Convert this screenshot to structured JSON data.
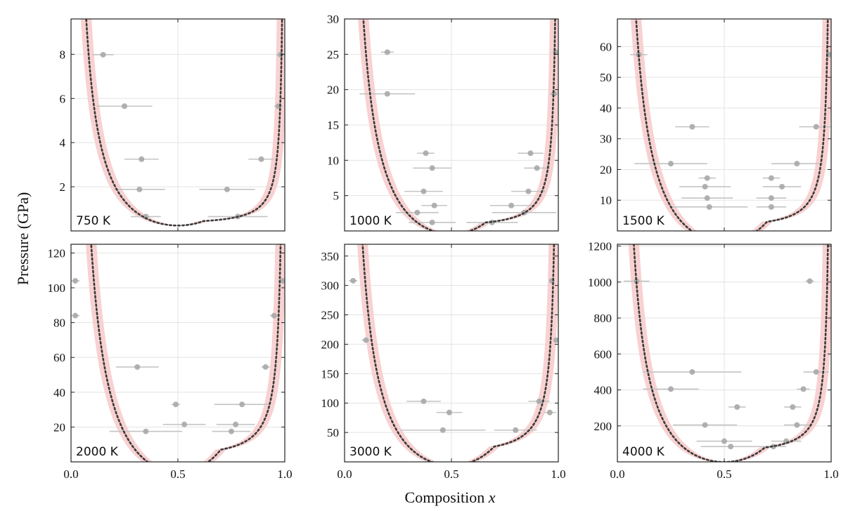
{
  "figure": {
    "ylabel": "Pressure (GPa)",
    "xlabel_text": "Composition ",
    "xlabel_var": "x"
  },
  "colors": {
    "band": "#f7c9c9",
    "curve": "#3a3a3a",
    "point": "#a8a8a8",
    "errorbar": "#c4c4c4",
    "grid": "#e3e3e3",
    "frame": "#222222"
  },
  "chart_data": [
    {
      "type": "scatter",
      "temperature_label": "750 K",
      "xlim": [
        0,
        1
      ],
      "ylim": [
        0,
        9.6
      ],
      "yticks": [
        2,
        4,
        6,
        8
      ],
      "ytick_labels": [
        "2",
        "4",
        "6",
        "8"
      ],
      "xticks": [
        0,
        0.5,
        1
      ],
      "xtick_labels": [],
      "curve": {
        "x_min": 0.62,
        "p_min": 0.45,
        "a_left": 0.84,
        "a_right": 0.12,
        "band_width": 0.05
      },
      "points": [
        {
          "x": 0.15,
          "y": 7.98,
          "xerr": 0.05
        },
        {
          "x": 0.25,
          "y": 5.65,
          "xerr": 0.13
        },
        {
          "x": 0.33,
          "y": 3.25,
          "xerr": 0.08
        },
        {
          "x": 0.32,
          "y": 1.88,
          "xerr": 0.12
        },
        {
          "x": 0.35,
          "y": 0.65,
          "xerr": 0.07
        },
        {
          "x": 0.98,
          "y": 7.98,
          "xerr": 0.02
        },
        {
          "x": 0.97,
          "y": 5.65,
          "xerr": 0.02
        },
        {
          "x": 0.89,
          "y": 3.25,
          "xerr": 0.06
        },
        {
          "x": 0.73,
          "y": 1.88,
          "xerr": 0.13
        },
        {
          "x": 0.78,
          "y": 0.65,
          "xerr": 0.14
        }
      ]
    },
    {
      "type": "scatter",
      "temperature_label": "1000 K",
      "xlim": [
        0,
        1
      ],
      "ylim": [
        0,
        30
      ],
      "yticks": [
        5,
        10,
        15,
        20,
        25,
        30
      ],
      "ytick_labels": [
        "5",
        "10",
        "15",
        "20",
        "25",
        "30"
      ],
      "xticks": [
        0,
        0.5,
        1
      ],
      "xtick_labels": [],
      "curve": {
        "x_min": 0.66,
        "p_min": 1.2,
        "a_left": 3.6,
        "a_right": 0.45,
        "band_width": 0.05
      },
      "points": [
        {
          "x": 0.2,
          "y": 25.3,
          "xerr": 0.03
        },
        {
          "x": 0.2,
          "y": 19.4,
          "xerr": 0.13
        },
        {
          "x": 0.38,
          "y": 11.0,
          "xerr": 0.04
        },
        {
          "x": 0.41,
          "y": 8.9,
          "xerr": 0.09
        },
        {
          "x": 0.37,
          "y": 5.6,
          "xerr": 0.09
        },
        {
          "x": 0.42,
          "y": 3.6,
          "xerr": 0.06
        },
        {
          "x": 0.34,
          "y": 2.6,
          "xerr": 0.1
        },
        {
          "x": 0.41,
          "y": 1.2,
          "xerr": 0.11
        },
        {
          "x": 0.99,
          "y": 25.3,
          "xerr": 0.02
        },
        {
          "x": 0.98,
          "y": 19.4,
          "xerr": 0.02
        },
        {
          "x": 0.87,
          "y": 11.0,
          "xerr": 0.06
        },
        {
          "x": 0.9,
          "y": 8.9,
          "xerr": 0.06
        },
        {
          "x": 0.86,
          "y": 5.6,
          "xerr": 0.08
        },
        {
          "x": 0.78,
          "y": 3.6,
          "xerr": 0.1
        },
        {
          "x": 0.84,
          "y": 2.6,
          "xerr": 0.15
        },
        {
          "x": 0.69,
          "y": 1.2,
          "xerr": 0.12
        }
      ]
    },
    {
      "type": "scatter",
      "temperature_label": "1500 K",
      "xlim": [
        0,
        1
      ],
      "ylim": [
        0,
        69
      ],
      "yticks": [
        10,
        20,
        30,
        40,
        50,
        60
      ],
      "ytick_labels": [
        "10",
        "20",
        "30",
        "40",
        "50",
        "60"
      ],
      "xticks": [
        0,
        0.5,
        1
      ],
      "xtick_labels": [],
      "curve": {
        "x_min": 0.7,
        "p_min": 3.0,
        "a_left": 8.5,
        "a_right": 1.1,
        "band_width": 0.05
      },
      "points": [
        {
          "x": 0.1,
          "y": 57.4,
          "xerr": 0.04
        },
        {
          "x": 0.35,
          "y": 33.9,
          "xerr": 0.08
        },
        {
          "x": 0.25,
          "y": 21.9,
          "xerr": 0.17
        },
        {
          "x": 0.42,
          "y": 17.2,
          "xerr": 0.04
        },
        {
          "x": 0.41,
          "y": 14.4,
          "xerr": 0.12
        },
        {
          "x": 0.42,
          "y": 10.7,
          "xerr": 0.12
        },
        {
          "x": 0.43,
          "y": 7.8,
          "xerr": 0.18
        },
        {
          "x": 0.99,
          "y": 57.4,
          "xerr": 0.01
        },
        {
          "x": 0.93,
          "y": 33.9,
          "xerr": 0.08
        },
        {
          "x": 0.84,
          "y": 21.9,
          "xerr": 0.12
        },
        {
          "x": 0.72,
          "y": 17.2,
          "xerr": 0.04
        },
        {
          "x": 0.77,
          "y": 14.4,
          "xerr": 0.09
        },
        {
          "x": 0.72,
          "y": 10.7,
          "xerr": 0.07
        },
        {
          "x": 0.72,
          "y": 7.8,
          "xerr": 0.07
        }
      ]
    },
    {
      "type": "scatter",
      "temperature_label": "2000 K",
      "xlim": [
        0,
        1
      ],
      "ylim": [
        0,
        125
      ],
      "yticks": [
        20,
        40,
        60,
        80,
        100,
        120
      ],
      "ytick_labels": [
        "20",
        "40",
        "60",
        "80",
        "100",
        "120"
      ],
      "xticks": [
        0,
        0.5,
        1
      ],
      "xtick_labels": [
        "0.0",
        "0.5",
        "1.0"
      ],
      "curve": {
        "x_min": 0.7,
        "p_min": 7.0,
        "a_left": 17,
        "a_right": 2.5,
        "band_width": 0.05
      },
      "points": [
        {
          "x": 0.02,
          "y": 104,
          "xerr": 0.02
        },
        {
          "x": 0.02,
          "y": 84,
          "xerr": 0.02
        },
        {
          "x": 0.31,
          "y": 54.5,
          "xerr": 0.1
        },
        {
          "x": 0.49,
          "y": 33,
          "xerr": 0.02
        },
        {
          "x": 0.53,
          "y": 21.5,
          "xerr": 0.1
        },
        {
          "x": 0.35,
          "y": 17.5,
          "xerr": 0.17
        },
        {
          "x": 0.99,
          "y": 104,
          "xerr": 0.01
        },
        {
          "x": 0.95,
          "y": 84,
          "xerr": 0.02
        },
        {
          "x": 0.91,
          "y": 54.5,
          "xerr": 0.02
        },
        {
          "x": 0.8,
          "y": 33,
          "xerr": 0.13
        },
        {
          "x": 0.77,
          "y": 21.5,
          "xerr": 0.09
        },
        {
          "x": 0.75,
          "y": 17.5,
          "xerr": 0.09
        }
      ]
    },
    {
      "type": "scatter",
      "temperature_label": "3000 K",
      "xlim": [
        0,
        1
      ],
      "ylim": [
        0,
        370
      ],
      "yticks": [
        50,
        100,
        150,
        200,
        250,
        300,
        350
      ],
      "ytick_labels": [
        "50",
        "100",
        "150",
        "200",
        "250",
        "300",
        "350"
      ],
      "xticks": [
        0,
        0.5,
        1
      ],
      "xtick_labels": [
        "0.0",
        "0.5",
        "1.0"
      ],
      "curve": {
        "x_min": 0.7,
        "p_min": 26,
        "a_left": 42,
        "a_right": 7.5,
        "band_width": 0.05
      },
      "points": [
        {
          "x": 0.04,
          "y": 308,
          "xerr": 0.02
        },
        {
          "x": 0.1,
          "y": 207,
          "xerr": 0.02
        },
        {
          "x": 0.37,
          "y": 103,
          "xerr": 0.08
        },
        {
          "x": 0.49,
          "y": 84,
          "xerr": 0.06
        },
        {
          "x": 0.46,
          "y": 54,
          "xerr": 0.2
        },
        {
          "x": 0.97,
          "y": 308,
          "xerr": 0.01
        },
        {
          "x": 0.99,
          "y": 207,
          "xerr": 0.01
        },
        {
          "x": 0.91,
          "y": 103,
          "xerr": 0.05
        },
        {
          "x": 0.96,
          "y": 84,
          "xerr": 0.03
        },
        {
          "x": 0.8,
          "y": 54,
          "xerr": 0.1
        }
      ]
    },
    {
      "type": "scatter",
      "temperature_label": "4000 K",
      "xlim": [
        0,
        1
      ],
      "ylim": [
        0,
        1210
      ],
      "yticks": [
        200,
        400,
        600,
        800,
        1000,
        1200
      ],
      "ytick_labels": [
        "200",
        "400",
        "600",
        "800",
        "1000",
        "1200"
      ],
      "xticks": [
        0,
        0.5,
        1
      ],
      "xtick_labels": [
        "0.0",
        "0.5",
        "1.0"
      ],
      "curve": {
        "x_min": 0.69,
        "p_min": 80,
        "a_left": 120,
        "a_right": 18,
        "band_width": 0.05
      },
      "points": [
        {
          "x": 0.09,
          "y": 1005,
          "xerr": 0.06
        },
        {
          "x": 0.35,
          "y": 500,
          "xerr": 0.23
        },
        {
          "x": 0.25,
          "y": 405,
          "xerr": 0.13
        },
        {
          "x": 0.56,
          "y": 305,
          "xerr": 0.04
        },
        {
          "x": 0.41,
          "y": 205,
          "xerr": 0.15
        },
        {
          "x": 0.5,
          "y": 115,
          "xerr": 0.13
        },
        {
          "x": 0.53,
          "y": 85,
          "xerr": 0.14
        },
        {
          "x": 0.9,
          "y": 1005,
          "xerr": 0.02
        },
        {
          "x": 0.93,
          "y": 500,
          "xerr": 0.06
        },
        {
          "x": 0.87,
          "y": 405,
          "xerr": 0.03
        },
        {
          "x": 0.82,
          "y": 305,
          "xerr": 0.04
        },
        {
          "x": 0.84,
          "y": 205,
          "xerr": 0.06
        },
        {
          "x": 0.79,
          "y": 115,
          "xerr": 0.07
        },
        {
          "x": 0.73,
          "y": 85,
          "xerr": 0.06
        }
      ]
    }
  ]
}
